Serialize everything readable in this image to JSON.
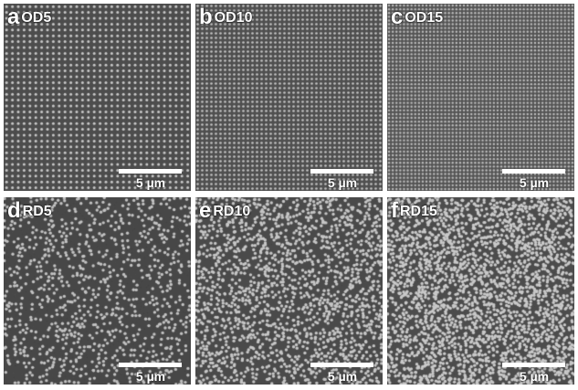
{
  "panels": [
    {
      "letter": "a",
      "name": "OD5",
      "pattern": "ordered",
      "density": 5,
      "background": "#4d4d4d",
      "dot_color": "#c9c9c9"
    },
    {
      "letter": "b",
      "name": "OD10",
      "pattern": "ordered",
      "density": 10,
      "background": "#4f4f4f",
      "dot_color": "#c4c4c4"
    },
    {
      "letter": "c",
      "name": "OD15",
      "pattern": "ordered",
      "density": 15,
      "background": "#555555",
      "dot_color": "#bdbdbd"
    },
    {
      "letter": "d",
      "name": "RD5",
      "pattern": "random",
      "density": 5,
      "background": "#474747",
      "dot_color": "#c2c2c2"
    },
    {
      "letter": "e",
      "name": "RD10",
      "pattern": "random",
      "density": 10,
      "background": "#4a4a4a",
      "dot_color": "#c6c6c6"
    },
    {
      "letter": "f",
      "name": "RD15",
      "pattern": "random",
      "density": 15,
      "background": "#4c4c4c",
      "dot_color": "#c9c9c9"
    }
  ],
  "scale_bar_label": "5 µm"
}
